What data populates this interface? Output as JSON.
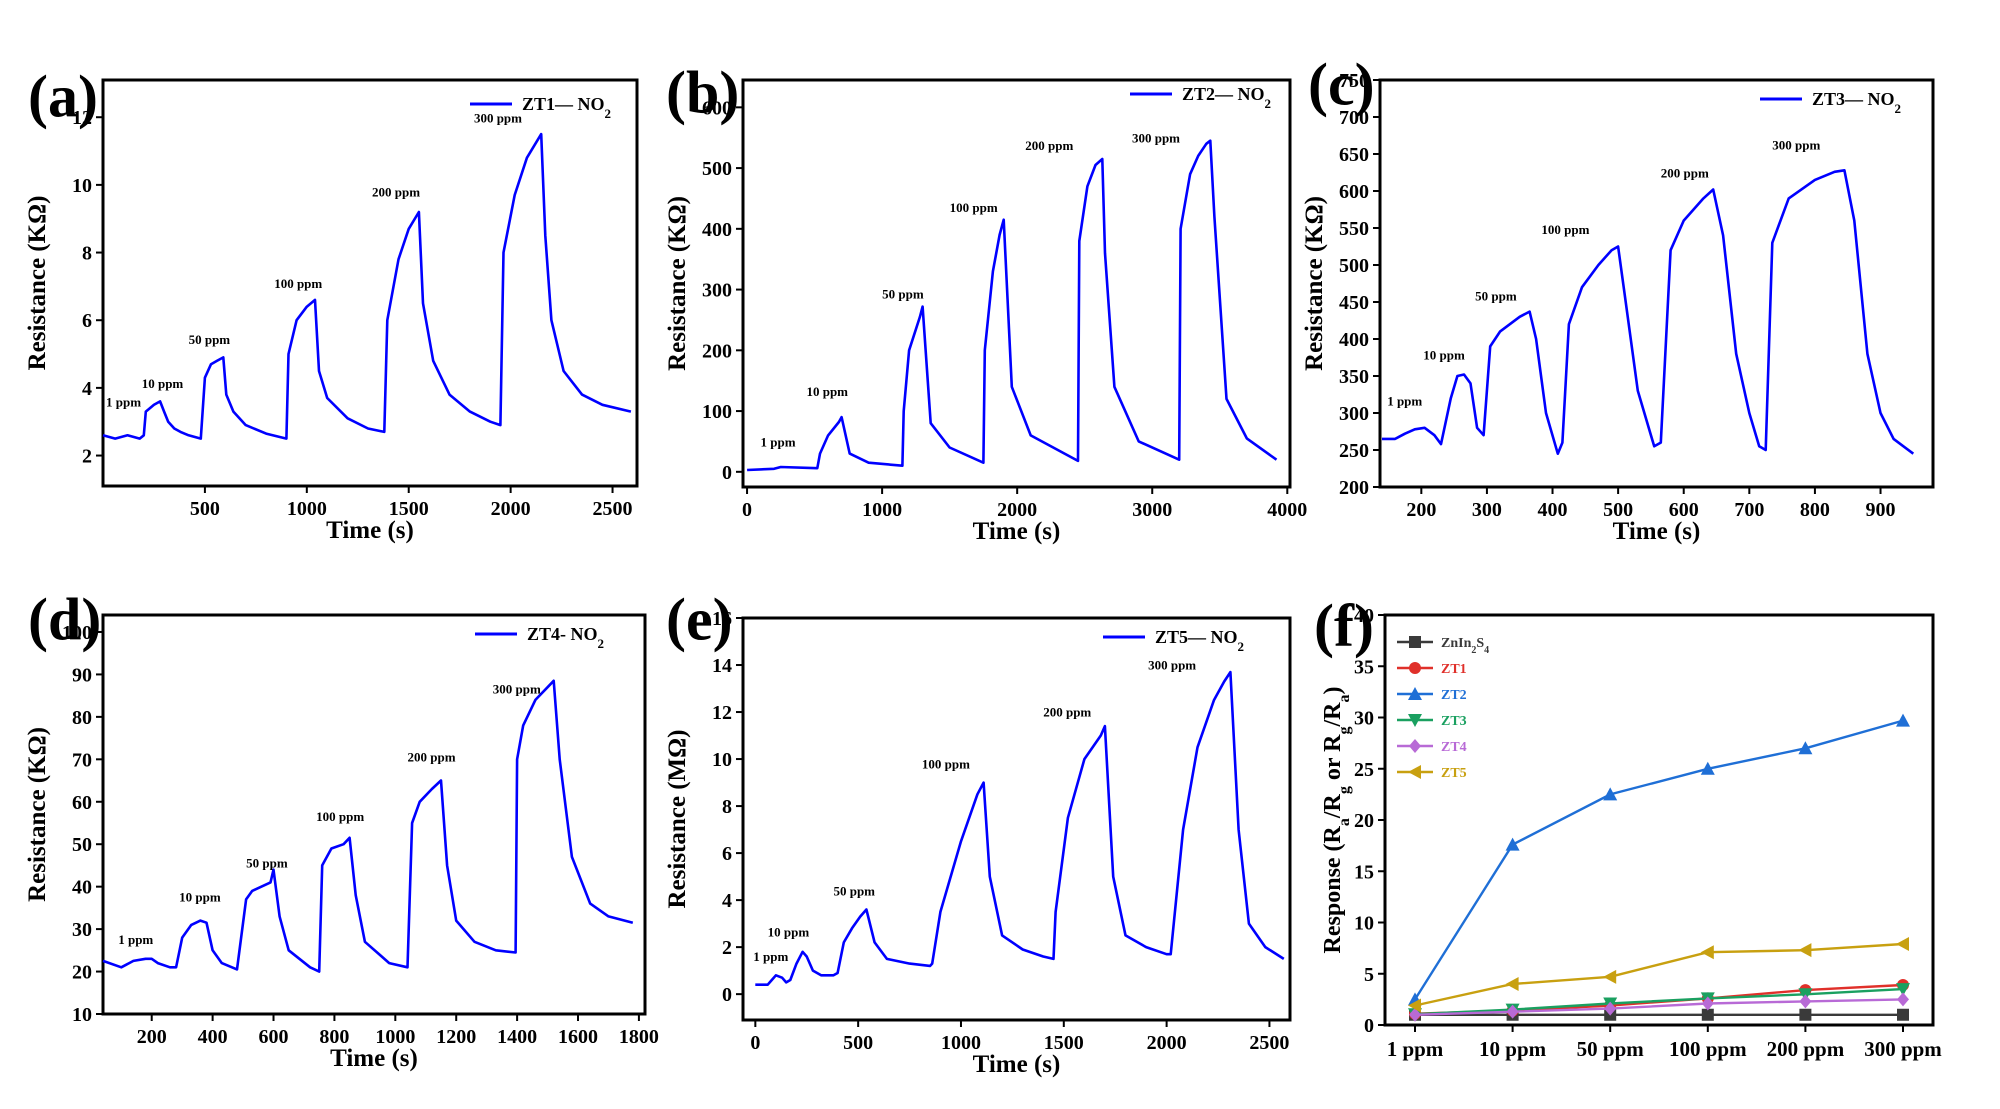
{
  "chart_data": [
    {
      "id": "a",
      "panel_label": "(a)",
      "type": "line",
      "legend": "ZT1— NO",
      "legend_sub": "2",
      "xlabel": "Time (s)",
      "ylabel": "Resistance (KΩ)",
      "xlim": [
        0,
        2620
      ],
      "ylim": [
        1.1,
        13.1
      ],
      "xticks": [
        500,
        1000,
        1500,
        2000,
        2500
      ],
      "xtick_labels": [
        "500",
        "1000",
        "1500",
        "2000",
        "2500"
      ],
      "yticks": [
        2,
        4,
        6,
        8,
        10,
        12
      ],
      "ytick_labels": [
        "2",
        "4",
        "6",
        "8",
        "10",
        "12"
      ],
      "series": [
        {
          "name": "ZT1— NO2",
          "color": "#0000ff",
          "x": [
            0,
            60,
            120,
            180,
            200,
            210,
            250,
            280,
            300,
            320,
            350,
            380,
            420,
            480,
            500,
            530,
            560,
            590,
            605,
            640,
            700,
            800,
            900,
            910,
            950,
            1000,
            1040,
            1060,
            1100,
            1200,
            1300,
            1380,
            1395,
            1450,
            1500,
            1550,
            1570,
            1620,
            1700,
            1800,
            1900,
            1950,
            1965,
            2020,
            2080,
            2150,
            2170,
            2200,
            2260,
            2350,
            2450,
            2590
          ],
          "y": [
            2.6,
            2.5,
            2.6,
            2.5,
            2.6,
            3.3,
            3.5,
            3.6,
            3.3,
            3.0,
            2.8,
            2.7,
            2.6,
            2.5,
            4.3,
            4.7,
            4.8,
            4.9,
            3.8,
            3.3,
            2.9,
            2.65,
            2.5,
            5.0,
            6.0,
            6.4,
            6.6,
            4.5,
            3.7,
            3.1,
            2.8,
            2.7,
            6.0,
            7.8,
            8.7,
            9.2,
            6.5,
            4.8,
            3.8,
            3.3,
            3.0,
            2.9,
            8.0,
            9.7,
            10.8,
            11.5,
            8.5,
            6.0,
            4.5,
            3.8,
            3.5,
            3.3
          ]
        }
      ],
      "annotations": [
        {
          "text": "1 ppm",
          "x": 15,
          "y": 3.45
        },
        {
          "text": "10 ppm",
          "x": 190,
          "y": 4.0
        },
        {
          "text": "50 ppm",
          "x": 420,
          "y": 5.3
        },
        {
          "text": "100 ppm",
          "x": 840,
          "y": 6.95
        },
        {
          "text": "200 ppm",
          "x": 1320,
          "y": 9.65
        },
        {
          "text": "300 ppm",
          "x": 1820,
          "y": 11.85
        }
      ]
    },
    {
      "id": "b",
      "panel_label": "(b)",
      "type": "line",
      "legend": "ZT2— NO",
      "legend_sub": "2",
      "xlabel": "Time (s)",
      "ylabel": "Resistance (KΩ)",
      "xlim": [
        -30,
        4020
      ],
      "ylim": [
        -25,
        645
      ],
      "xticks": [
        0,
        1000,
        2000,
        3000,
        4000
      ],
      "xtick_labels": [
        "0",
        "1000",
        "2000",
        "3000",
        "4000"
      ],
      "yticks": [
        0,
        100,
        200,
        300,
        400,
        500,
        600
      ],
      "ytick_labels": [
        "0",
        "100",
        "200",
        "300",
        "400",
        "500",
        "600"
      ],
      "series": [
        {
          "name": "ZT2— NO2",
          "color": "#0000ff",
          "x": [
            0,
            200,
            250,
            520,
            540,
            600,
            680,
            700,
            760,
            900,
            1150,
            1160,
            1200,
            1280,
            1300,
            1360,
            1500,
            1750,
            1760,
            1820,
            1870,
            1900,
            1960,
            2100,
            2450,
            2460,
            2520,
            2580,
            2630,
            2650,
            2720,
            2900,
            3200,
            3210,
            3280,
            3340,
            3400,
            3430,
            3460,
            3550,
            3700,
            3920
          ],
          "y": [
            3,
            5,
            8,
            6,
            30,
            60,
            82,
            90,
            30,
            15,
            10,
            100,
            200,
            255,
            272,
            80,
            40,
            15,
            200,
            330,
            390,
            415,
            140,
            60,
            18,
            380,
            470,
            505,
            515,
            360,
            140,
            50,
            20,
            400,
            490,
            520,
            540,
            545,
            420,
            120,
            55,
            20
          ],
          "marker": null
        }
      ],
      "annotations": [
        {
          "text": "1 ppm",
          "x": 100,
          "y": 42
        },
        {
          "text": "10 ppm",
          "x": 440,
          "y": 125
        },
        {
          "text": "50 ppm",
          "x": 1000,
          "y": 285
        },
        {
          "text": "100 ppm",
          "x": 1500,
          "y": 428
        },
        {
          "text": "200 ppm",
          "x": 2060,
          "y": 530
        },
        {
          "text": "300 ppm",
          "x": 2850,
          "y": 542
        }
      ]
    },
    {
      "id": "c",
      "panel_label": "(c)",
      "type": "line",
      "legend": "ZT3— NO",
      "legend_sub": "2",
      "xlabel": "Time (s)",
      "ylabel": "Resistance (KΩ)",
      "xlim": [
        137,
        980
      ],
      "ylim": [
        200,
        750
      ],
      "xticks": [
        200,
        300,
        400,
        500,
        600,
        700,
        800,
        900
      ],
      "xtick_labels": [
        "200",
        "300",
        "400",
        "500",
        "600",
        "700",
        "800",
        "900"
      ],
      "yticks": [
        200,
        250,
        300,
        350,
        400,
        450,
        500,
        550,
        600,
        650,
        700,
        750
      ],
      "ytick_labels": [
        "200",
        "250",
        "300",
        "350",
        "400",
        "450",
        "500",
        "550",
        "600",
        "650",
        "700",
        "750"
      ],
      "series": [
        {
          "name": "ZT3— NO2",
          "color": "#0000ff",
          "x": [
            140,
            160,
            175,
            190,
            205,
            220,
            230,
            245,
            255,
            265,
            275,
            285,
            295,
            305,
            320,
            350,
            365,
            375,
            390,
            408,
            415,
            425,
            445,
            470,
            490,
            500,
            510,
            530,
            555,
            565,
            580,
            600,
            630,
            645,
            660,
            680,
            700,
            715,
            725,
            735,
            760,
            800,
            830,
            845,
            860,
            880,
            900,
            920,
            950
          ],
          "y": [
            265,
            265,
            272,
            278,
            280,
            270,
            258,
            320,
            350,
            352,
            340,
            280,
            270,
            390,
            410,
            430,
            437,
            400,
            300,
            245,
            260,
            420,
            470,
            500,
            520,
            525,
            460,
            330,
            255,
            260,
            520,
            560,
            590,
            602,
            540,
            380,
            300,
            255,
            250,
            530,
            590,
            615,
            626,
            628,
            560,
            380,
            300,
            265,
            245
          ]
        }
      ],
      "annotations": [
        {
          "text": "1 ppm",
          "x": 148,
          "y": 310
        },
        {
          "text": "10 ppm",
          "x": 203,
          "y": 372
        },
        {
          "text": "50 ppm",
          "x": 282,
          "y": 452
        },
        {
          "text": "100 ppm",
          "x": 383,
          "y": 542
        },
        {
          "text": "200 ppm",
          "x": 565,
          "y": 618
        },
        {
          "text": "300 ppm",
          "x": 735,
          "y": 656
        }
      ]
    },
    {
      "id": "d",
      "panel_label": "(d)",
      "type": "line",
      "legend": "ZT4- NO",
      "legend_sub": "2",
      "xlabel": "Time (s)",
      "ylabel": "Resistance (KΩ)",
      "xlim": [
        40,
        1820
      ],
      "ylim": [
        10,
        104
      ],
      "xticks": [
        200,
        400,
        600,
        800,
        1000,
        1200,
        1400,
        1600,
        1800
      ],
      "xtick_labels": [
        "200",
        "400",
        "600",
        "800",
        "1000",
        "1200",
        "1400",
        "1600",
        "1800"
      ],
      "yticks": [
        10,
        20,
        30,
        40,
        50,
        60,
        70,
        80,
        90,
        100
      ],
      "ytick_labels": [
        "10",
        "20",
        "30",
        "40",
        "50",
        "60",
        "70",
        "80",
        "90",
        "100"
      ],
      "series": [
        {
          "name": "ZT4- NO2",
          "color": "#0000ff",
          "x": [
            40,
            100,
            140,
            180,
            200,
            220,
            260,
            280,
            300,
            330,
            360,
            380,
            400,
            430,
            480,
            510,
            530,
            560,
            590,
            600,
            620,
            650,
            720,
            750,
            760,
            790,
            830,
            850,
            870,
            900,
            980,
            1040,
            1055,
            1080,
            1120,
            1150,
            1170,
            1200,
            1260,
            1330,
            1395,
            1400,
            1420,
            1460,
            1500,
            1520,
            1540,
            1580,
            1640,
            1700,
            1780
          ],
          "y": [
            22.5,
            21,
            22.5,
            23,
            23,
            22,
            21,
            21,
            28,
            31,
            32,
            31.5,
            25,
            22,
            20.5,
            37,
            39,
            40,
            41,
            44,
            33,
            25,
            21,
            20,
            45,
            49,
            50,
            51.5,
            38,
            27,
            22,
            21,
            55,
            60,
            63,
            65,
            45,
            32,
            27,
            25,
            24.5,
            70,
            78,
            84,
            87,
            88.5,
            70,
            47,
            36,
            33,
            31.5
          ]
        }
      ],
      "annotations": [
        {
          "text": "1 ppm",
          "x": 90,
          "y": 26.5
        },
        {
          "text": "10 ppm",
          "x": 290,
          "y": 36.5
        },
        {
          "text": "50 ppm",
          "x": 510,
          "y": 44.5
        },
        {
          "text": "100 ppm",
          "x": 740,
          "y": 55.5
        },
        {
          "text": "200 ppm",
          "x": 1040,
          "y": 69.5
        },
        {
          "text": "300 ppm",
          "x": 1320,
          "y": 85.5
        }
      ]
    },
    {
      "id": "e",
      "panel_label": "(e)",
      "type": "line",
      "legend": "ZT5— NO",
      "legend_sub": "2",
      "xlabel": "Time (s)",
      "ylabel": "Resistance (MΩ)",
      "xlim": [
        -60,
        2600
      ],
      "ylim": [
        -1.1,
        16
      ],
      "xticks": [
        0,
        500,
        1000,
        1500,
        2000,
        2500
      ],
      "xtick_labels": [
        "0",
        "500",
        "1000",
        "1500",
        "2000",
        "2500"
      ],
      "yticks": [
        0,
        2,
        4,
        6,
        8,
        10,
        12,
        14,
        16
      ],
      "ytick_labels": [
        "0",
        "2",
        "4",
        "6",
        "8",
        "10",
        "12",
        "14",
        "16"
      ],
      "series": [
        {
          "name": "ZT5— NO2",
          "color": "#0000ff",
          "x": [
            0,
            60,
            80,
            100,
            130,
            150,
            170,
            200,
            230,
            250,
            280,
            320,
            380,
            400,
            430,
            470,
            510,
            540,
            580,
            640,
            750,
            850,
            860,
            900,
            1000,
            1080,
            1110,
            1140,
            1200,
            1300,
            1400,
            1450,
            1460,
            1520,
            1600,
            1680,
            1700,
            1740,
            1800,
            1900,
            2000,
            2020,
            2080,
            2150,
            2230,
            2280,
            2310,
            2350,
            2400,
            2480,
            2570
          ],
          "y": [
            0.4,
            0.4,
            0.6,
            0.8,
            0.7,
            0.5,
            0.6,
            1.3,
            1.8,
            1.6,
            1.0,
            0.8,
            0.8,
            0.9,
            2.2,
            2.8,
            3.3,
            3.6,
            2.2,
            1.5,
            1.3,
            1.2,
            1.3,
            3.5,
            6.5,
            8.5,
            9.0,
            5.0,
            2.5,
            1.9,
            1.6,
            1.5,
            3.5,
            7.5,
            10,
            11.0,
            11.4,
            5.0,
            2.5,
            2.0,
            1.7,
            1.7,
            7.0,
            10.5,
            12.5,
            13.3,
            13.7,
            7.0,
            3.0,
            2.0,
            1.5
          ]
        }
      ],
      "annotations": [
        {
          "text": "1 ppm",
          "x": -10,
          "y": 1.4
        },
        {
          "text": "10 ppm",
          "x": 60,
          "y": 2.45
        },
        {
          "text": "50 ppm",
          "x": 380,
          "y": 4.2
        },
        {
          "text": "100 ppm",
          "x": 810,
          "y": 9.6
        },
        {
          "text": "200 ppm",
          "x": 1400,
          "y": 11.8
        },
        {
          "text": "300 ppm",
          "x": 1910,
          "y": 13.8
        }
      ]
    },
    {
      "id": "f",
      "panel_label": "(f)",
      "type": "line",
      "xlabel": "",
      "ylabel": "Response (R",
      "ylabel_parts": [
        "Response (R",
        "a",
        "/R",
        "g",
        " or R",
        "g",
        "/R",
        "a",
        ")"
      ],
      "categories": [
        "1 ppm",
        "10 ppm",
        "50 ppm",
        "100 ppm",
        "200 ppm",
        "300 ppm"
      ],
      "ylim": [
        0,
        40
      ],
      "yticks": [
        0,
        5,
        10,
        15,
        20,
        25,
        30,
        35,
        40
      ],
      "ytick_labels": [
        "0",
        "5",
        "10",
        "15",
        "20",
        "25",
        "30",
        "35",
        "40"
      ],
      "legend_pos": "top-left",
      "series": [
        {
          "name": "ZnIn",
          "name_parts": [
            "ZnIn",
            "2",
            "S",
            "4"
          ],
          "color": "#3a3a3a",
          "marker": "square",
          "values": [
            1.0,
            1.0,
            1.0,
            1.0,
            1.0,
            1.0
          ]
        },
        {
          "name": "ZT1",
          "color": "#e0302a",
          "marker": "circle",
          "values": [
            1.1,
            1.4,
            1.9,
            2.6,
            3.4,
            3.9
          ]
        },
        {
          "name": "ZT2",
          "color": "#1f6fd6",
          "marker": "triangle-up",
          "values": [
            2.5,
            17.6,
            22.5,
            25.0,
            27.0,
            29.7
          ]
        },
        {
          "name": "ZT3",
          "color": "#1aa060",
          "marker": "triangle-down",
          "values": [
            1.05,
            1.5,
            2.1,
            2.6,
            3.0,
            3.5
          ]
        },
        {
          "name": "ZT4",
          "color": "#b86ad6",
          "marker": "diamond",
          "values": [
            1.0,
            1.3,
            1.6,
            2.1,
            2.3,
            2.5
          ]
        },
        {
          "name": "ZT5",
          "color": "#c8a010",
          "marker": "triangle-left",
          "values": [
            1.9,
            4.0,
            4.7,
            7.1,
            7.3,
            7.9
          ]
        }
      ]
    }
  ]
}
